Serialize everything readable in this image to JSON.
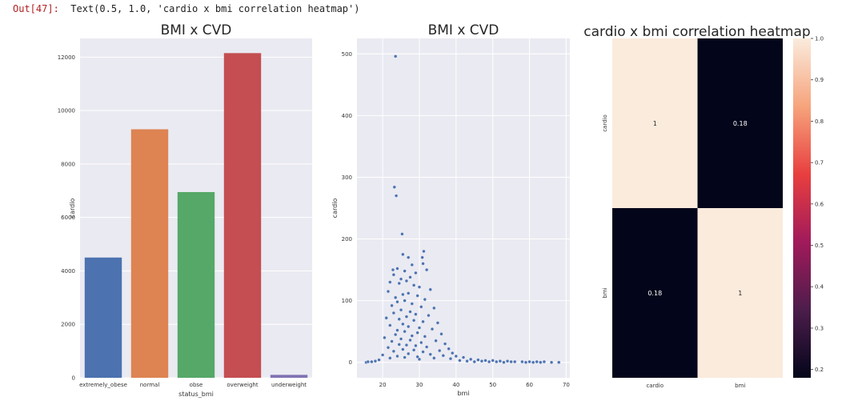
{
  "output": {
    "prompt": "Out[47]:",
    "text": "Text(0.5, 1.0, 'cardio x bmi correlation heatmap')"
  },
  "chart_data": [
    {
      "type": "bar",
      "title": "BMI x CVD",
      "xlabel": "status_bmi",
      "ylabel": "cardio",
      "categories": [
        "extremely_obese",
        "normal",
        "obse",
        "overweight",
        "underweight"
      ],
      "values": [
        4500,
        9300,
        6950,
        12150,
        110
      ],
      "colors": [
        "#4c72b0",
        "#dd8452",
        "#55a868",
        "#c44e52",
        "#8172b3"
      ],
      "ylim": [
        0,
        12700
      ],
      "yticks": [
        0,
        2000,
        4000,
        6000,
        8000,
        10000,
        12000
      ],
      "grid": true,
      "background": "#eaeaf2"
    },
    {
      "type": "scatter",
      "title": "BMI x CVD",
      "xlabel": "bmi",
      "ylabel": "cardio",
      "xlim": [
        13,
        71
      ],
      "ylim": [
        -25,
        525
      ],
      "xticks": [
        20,
        30,
        40,
        50,
        60,
        70
      ],
      "yticks": [
        0,
        100,
        200,
        300,
        400,
        500
      ],
      "color": "#4c72b0",
      "grid": true,
      "background": "#eaeaf2",
      "points": [
        [
          23.5,
          496
        ],
        [
          23.2,
          284
        ],
        [
          23.7,
          270
        ],
        [
          25.3,
          208
        ],
        [
          31.2,
          180
        ],
        [
          25.5,
          175
        ],
        [
          30.8,
          170
        ],
        [
          27.0,
          170
        ],
        [
          31.0,
          160
        ],
        [
          28.0,
          158
        ],
        [
          24.0,
          152
        ],
        [
          22.8,
          150
        ],
        [
          26.0,
          148
        ],
        [
          29.0,
          145
        ],
        [
          23.0,
          142
        ],
        [
          32.0,
          150
        ],
        [
          27.5,
          138
        ],
        [
          25.0,
          135
        ],
        [
          26.5,
          132
        ],
        [
          22.0,
          130
        ],
        [
          24.5,
          128
        ],
        [
          28.5,
          125
        ],
        [
          30.0,
          122
        ],
        [
          33.0,
          118
        ],
        [
          21.5,
          115
        ],
        [
          27.0,
          112
        ],
        [
          25.5,
          110
        ],
        [
          29.5,
          108
        ],
        [
          23.5,
          105
        ],
        [
          31.5,
          102
        ],
        [
          26.0,
          100
        ],
        [
          24.0,
          98
        ],
        [
          28.0,
          95
        ],
        [
          22.5,
          92
        ],
        [
          30.5,
          90
        ],
        [
          34.0,
          88
        ],
        [
          25.0,
          85
        ],
        [
          27.5,
          82
        ],
        [
          23.0,
          80
        ],
        [
          29.0,
          78
        ],
        [
          32.5,
          76
        ],
        [
          26.5,
          74
        ],
        [
          21.0,
          72
        ],
        [
          24.5,
          70
        ],
        [
          28.5,
          68
        ],
        [
          31.0,
          66
        ],
        [
          35.0,
          64
        ],
        [
          25.5,
          62
        ],
        [
          22.0,
          60
        ],
        [
          27.0,
          58
        ],
        [
          30.0,
          56
        ],
        [
          33.5,
          54
        ],
        [
          24.0,
          52
        ],
        [
          26.0,
          50
        ],
        [
          29.5,
          48
        ],
        [
          36.0,
          46
        ],
        [
          23.5,
          45
        ],
        [
          28.0,
          43
        ],
        [
          31.5,
          42
        ],
        [
          20.5,
          40
        ],
        [
          25.0,
          38
        ],
        [
          27.5,
          36
        ],
        [
          34.5,
          35
        ],
        [
          22.5,
          34
        ],
        [
          30.5,
          32
        ],
        [
          37.0,
          30
        ],
        [
          24.5,
          29
        ],
        [
          26.5,
          28
        ],
        [
          29.0,
          27
        ],
        [
          32.0,
          25
        ],
        [
          21.5,
          24
        ],
        [
          38.0,
          22
        ],
        [
          25.5,
          21
        ],
        [
          28.5,
          20
        ],
        [
          35.5,
          19
        ],
        [
          23.0,
          18
        ],
        [
          31.0,
          17
        ],
        [
          39.0,
          15
        ],
        [
          27.0,
          14
        ],
        [
          33.0,
          13
        ],
        [
          20.0,
          12
        ],
        [
          36.5,
          11
        ],
        [
          24.0,
          10
        ],
        [
          40.0,
          10
        ],
        [
          29.5,
          9
        ],
        [
          42.0,
          8
        ],
        [
          26.0,
          8
        ],
        [
          34.0,
          7
        ],
        [
          22.0,
          7
        ],
        [
          38.5,
          6
        ],
        [
          44.0,
          5
        ],
        [
          30.0,
          5
        ],
        [
          46.0,
          4
        ],
        [
          19.0,
          4
        ],
        [
          48.0,
          3
        ],
        [
          50.0,
          3
        ],
        [
          18.0,
          2
        ],
        [
          52.0,
          2
        ],
        [
          54.0,
          2
        ],
        [
          56.0,
          1
        ],
        [
          58.0,
          1
        ],
        [
          17.0,
          1
        ],
        [
          60.0,
          1
        ],
        [
          62.0,
          1
        ],
        [
          15.5,
          0
        ],
        [
          64.0,
          1
        ],
        [
          66.0,
          0
        ],
        [
          68.0,
          0
        ],
        [
          45.0,
          1
        ],
        [
          47.0,
          2
        ],
        [
          49.0,
          1
        ],
        [
          51.0,
          1
        ],
        [
          53.0,
          0
        ],
        [
          55.0,
          1
        ],
        [
          41.0,
          3
        ],
        [
          43.0,
          2
        ],
        [
          16.0,
          1
        ],
        [
          59.0,
          0
        ],
        [
          61.0,
          0
        ],
        [
          63.0,
          0
        ]
      ]
    },
    {
      "type": "heatmap",
      "title": "cardio x bmi correlation heatmap",
      "xticklabels": [
        "cardio",
        "bmi"
      ],
      "yticklabels": [
        "cardio",
        "bmi"
      ],
      "values": [
        [
          1,
          0.18
        ],
        [
          0.18,
          1
        ]
      ],
      "annotations": [
        [
          "1",
          "0.18"
        ],
        [
          "0.18",
          "1"
        ]
      ],
      "colorbar": {
        "ticks": [
          0.2,
          0.3,
          0.4,
          0.5,
          0.6,
          0.7,
          0.8,
          0.9,
          1.0
        ],
        "ticklabels": [
          "0.2",
          "0.3",
          "0.4",
          "0.5",
          "0.6",
          "0.7",
          "0.8",
          "0.9",
          "1.0"
        ],
        "range": [
          0.18,
          1.0
        ],
        "stops": [
          "#03051a",
          "#4c1d4b",
          "#a11a5b",
          "#e83f3f",
          "#f6a47c",
          "#faebdd"
        ]
      }
    }
  ]
}
